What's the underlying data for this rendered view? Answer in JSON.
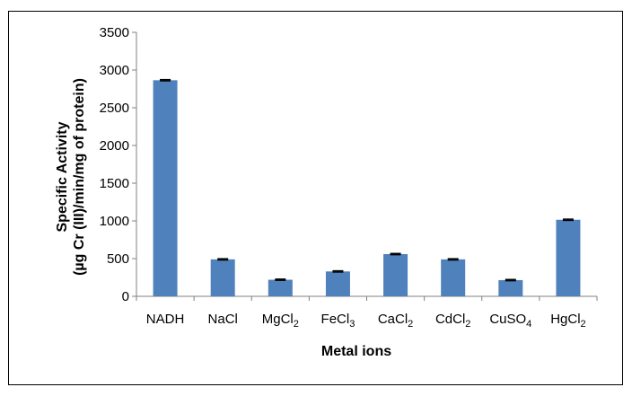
{
  "chart_data": {
    "type": "bar",
    "categories": [
      {
        "base": "NADH",
        "sub": ""
      },
      {
        "base": "NaCl",
        "sub": ""
      },
      {
        "base": "MgCl",
        "sub": "2"
      },
      {
        "base": "FeCl",
        "sub": "3"
      },
      {
        "base": "CaCl",
        "sub": "2"
      },
      {
        "base": "CdCl",
        "sub": "2"
      },
      {
        "base": "CuSO",
        "sub": "4"
      },
      {
        "base": "HgCl",
        "sub": "2"
      }
    ],
    "values": [
      2865,
      490,
      220,
      330,
      560,
      490,
      215,
      1015
    ],
    "errors": [
      8,
      8,
      8,
      8,
      8,
      8,
      8,
      8
    ],
    "xlabel": "Metal ions",
    "ylabel_lines": [
      "Specific Activity",
      "(µg Cr (III)/min/mg of protein)"
    ],
    "ylim": [
      0,
      3500
    ],
    "yticks": [
      0,
      500,
      1000,
      1500,
      2000,
      2500,
      3000,
      3500
    ],
    "grid": false,
    "legend": "none",
    "colors": {
      "bar": "#4F81BD",
      "error_bar": "#000000",
      "axis": "#808080",
      "frame": "#000000"
    }
  }
}
